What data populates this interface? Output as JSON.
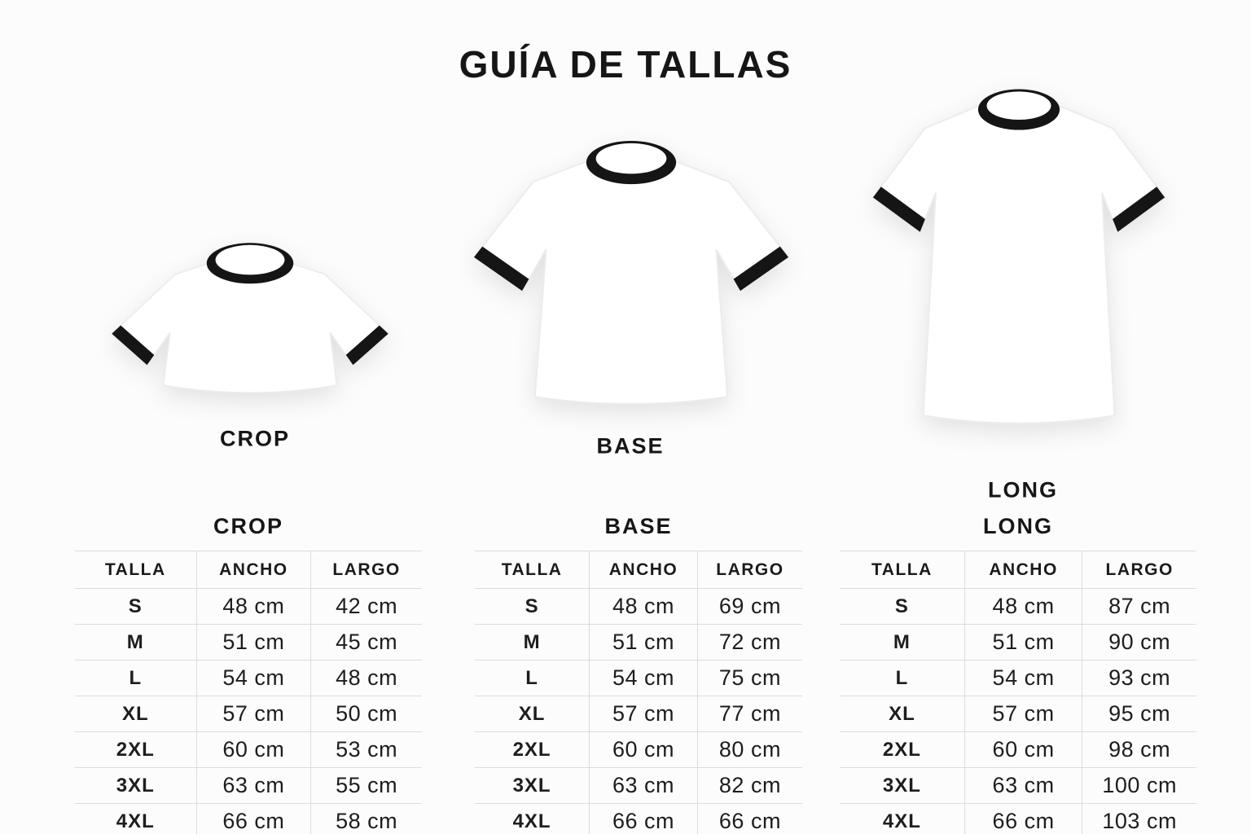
{
  "page": {
    "title": "GUÍA DE TALLAS"
  },
  "colors": {
    "background": "#fcfcfc",
    "text": "#1b1b1b",
    "table_line": "#dcdcdc",
    "shirt_trim": "#151515",
    "shirt_body": "#ffffff"
  },
  "shirts": [
    {
      "id": "crop",
      "label": "CROP"
    },
    {
      "id": "base",
      "label": "BASE"
    },
    {
      "id": "long",
      "label": "LONG"
    }
  ],
  "tables": [
    {
      "title": "CROP",
      "columns": [
        "TALLA",
        "ANCHO",
        "LARGO"
      ],
      "rows": [
        [
          "S",
          "48 cm",
          "42 cm"
        ],
        [
          "M",
          "51 cm",
          "45 cm"
        ],
        [
          "L",
          "54 cm",
          "48 cm"
        ],
        [
          "XL",
          "57 cm",
          "50 cm"
        ],
        [
          "2XL",
          "60 cm",
          "53 cm"
        ],
        [
          "3XL",
          "63 cm",
          "55 cm"
        ],
        [
          "4XL",
          "66 cm",
          "58 cm"
        ]
      ]
    },
    {
      "title": "BASE",
      "columns": [
        "TALLA",
        "ANCHO",
        "LARGO"
      ],
      "rows": [
        [
          "S",
          "48 cm",
          "69 cm"
        ],
        [
          "M",
          "51 cm",
          "72 cm"
        ],
        [
          "L",
          "54 cm",
          "75 cm"
        ],
        [
          "XL",
          "57 cm",
          "77 cm"
        ],
        [
          "2XL",
          "60 cm",
          "80 cm"
        ],
        [
          "3XL",
          "63 cm",
          "82 cm"
        ],
        [
          "4XL",
          "66 cm",
          "66 cm"
        ]
      ]
    },
    {
      "title": "LONG",
      "columns": [
        "TALLA",
        "ANCHO",
        "LARGO"
      ],
      "rows": [
        [
          "S",
          "48 cm",
          "87 cm"
        ],
        [
          "M",
          "51 cm",
          "90 cm"
        ],
        [
          "L",
          "54 cm",
          "93 cm"
        ],
        [
          "XL",
          "57 cm",
          "95 cm"
        ],
        [
          "2XL",
          "60 cm",
          "98 cm"
        ],
        [
          "3XL",
          "63 cm",
          "100 cm"
        ],
        [
          "4XL",
          "66 cm",
          "103 cm"
        ]
      ]
    }
  ]
}
